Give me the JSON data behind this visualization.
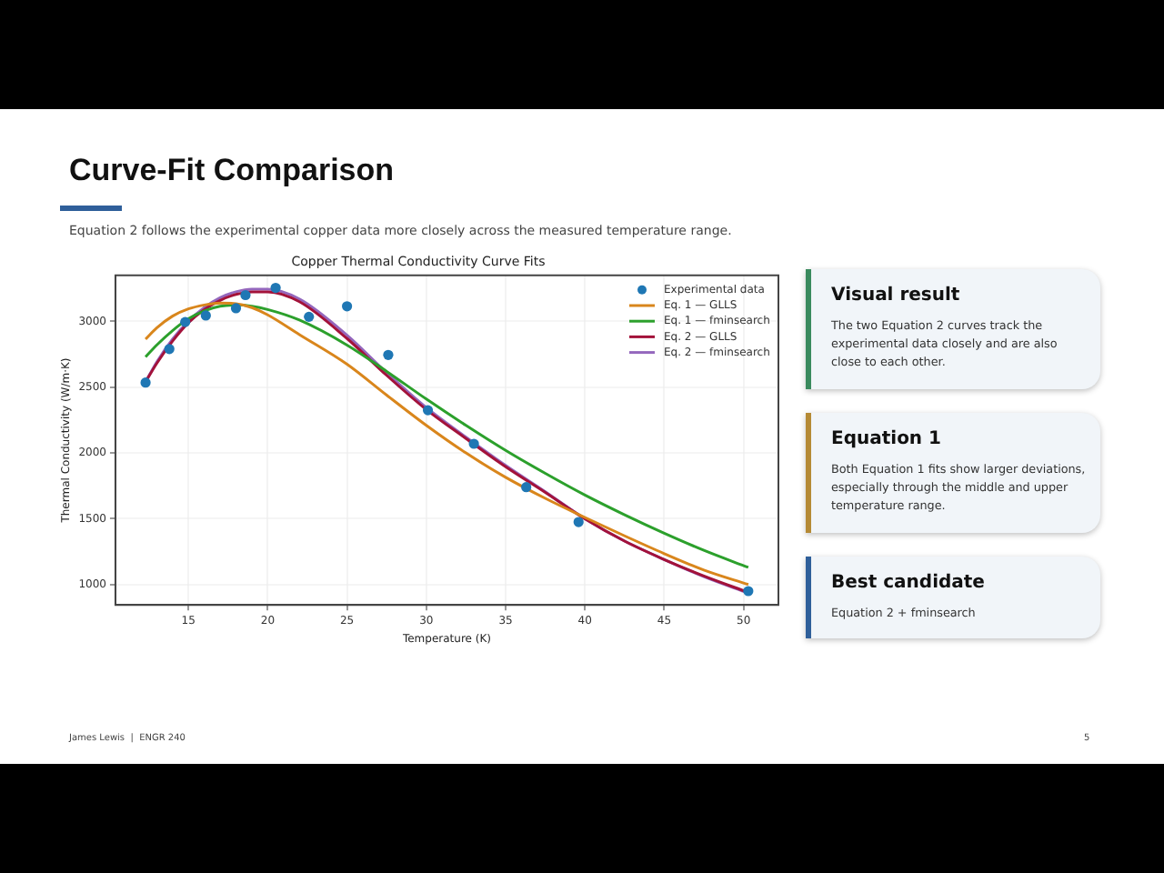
{
  "chart_data": [
    {
      "type": "other",
      "title": "Curve-Fit Comparison",
      "subtitle": "Equation 2 follows the experimental copper data more closely across the measured temperature range.",
      "annotations": [
        "James Lewis  |  ENGR 240",
        "5"
      ]
    },
    {
      "type": "line",
      "title": "Copper Thermal Conductivity Curve Fits",
      "xlabel": "Temperature (K)",
      "ylabel": "Thermal Conductivity (W/m·K)",
      "xlim": [
        10.4,
        52.2
      ],
      "xticks": [
        15,
        20,
        25,
        30,
        35,
        40,
        45,
        50
      ],
      "ylim": [
        845,
        3350
      ],
      "yticks": [
        1000,
        1500,
        2000,
        2500,
        3000
      ],
      "grid": true,
      "legend": "top right",
      "marker": "none",
      "line_style": "solid",
      "series": [
        {
          "name": "Experimental data",
          "type": "scatter",
          "marker": "circle",
          "color": "#1f77b4",
          "x": [
            12.3,
            13.8,
            14.8,
            16.1,
            18.0,
            18.6,
            20.5,
            22.6,
            25.0,
            27.6,
            30.1,
            33.0,
            36.3,
            39.6,
            50.3
          ],
          "values": [
            2535,
            2790,
            2995,
            3045,
            3100,
            3200,
            3255,
            3035,
            3115,
            2745,
            2325,
            2070,
            1740,
            1475,
            950
          ]
        },
        {
          "name": "Eq. 1 — GLLS",
          "color": "#d9861c",
          "x": [
            12.3,
            13,
            14,
            15,
            16,
            17,
            18,
            19,
            20,
            22,
            25,
            27.5,
            30,
            32.5,
            35,
            37.5,
            40,
            42.5,
            45,
            47.5,
            50.3
          ],
          "values": [
            2865,
            2950,
            3040,
            3095,
            3125,
            3140,
            3135,
            3105,
            3050,
            2900,
            2675,
            2440,
            2210,
            2000,
            1815,
            1655,
            1510,
            1370,
            1235,
            1110,
            1000
          ]
        },
        {
          "name": "Eq. 1 — fminsearch",
          "color": "#2ca02c",
          "x": [
            12.3,
            13,
            14,
            15,
            16,
            17,
            18,
            19,
            20,
            22,
            25,
            27.5,
            30,
            32.5,
            35,
            37.5,
            40,
            42.5,
            45,
            47.5,
            50.3
          ],
          "values": [
            2730,
            2820,
            2930,
            3020,
            3080,
            3115,
            3125,
            3115,
            3090,
            3010,
            2820,
            2620,
            2410,
            2210,
            2020,
            1845,
            1680,
            1530,
            1390,
            1260,
            1130
          ]
        },
        {
          "name": "Eq. 2 — GLLS",
          "color": "#a3123a",
          "x": [
            12.3,
            13,
            14,
            15,
            16,
            17,
            18,
            19,
            20,
            22,
            25,
            27.5,
            30,
            32.5,
            35,
            37.5,
            40,
            42.5,
            45,
            47.5,
            50.3
          ],
          "values": [
            2540,
            2680,
            2850,
            2990,
            3090,
            3160,
            3205,
            3225,
            3225,
            3150,
            2870,
            2590,
            2330,
            2110,
            1895,
            1700,
            1500,
            1330,
            1190,
            1065,
            940
          ]
        },
        {
          "name": "Eq. 2 — fminsearch",
          "color": "#9467bd",
          "x": [
            12.3,
            13,
            14,
            15,
            16,
            17,
            18,
            19,
            20,
            22,
            25,
            27.5,
            30,
            32.5,
            35,
            37.5,
            40,
            42.5,
            45,
            47.5,
            50.3
          ],
          "values": [
            2540,
            2690,
            2865,
            3000,
            3105,
            3180,
            3225,
            3245,
            3245,
            3170,
            2895,
            2610,
            2345,
            2120,
            1905,
            1705,
            1500,
            1330,
            1190,
            1060,
            935
          ]
        }
      ]
    },
    {
      "type": "other",
      "colors": [
        "#3a8a5e",
        "#b58a35",
        "#2f5f9a"
      ],
      "annotations": [
        "Visual result",
        "The two Equation 2 curves track the experimental data closely and are also close to each other.",
        "Equation 1",
        "Both Equation 1 fits show larger deviations, especially through the middle and upper temperature range.",
        "Best candidate",
        "Equation 2 + fminsearch"
      ]
    }
  ]
}
